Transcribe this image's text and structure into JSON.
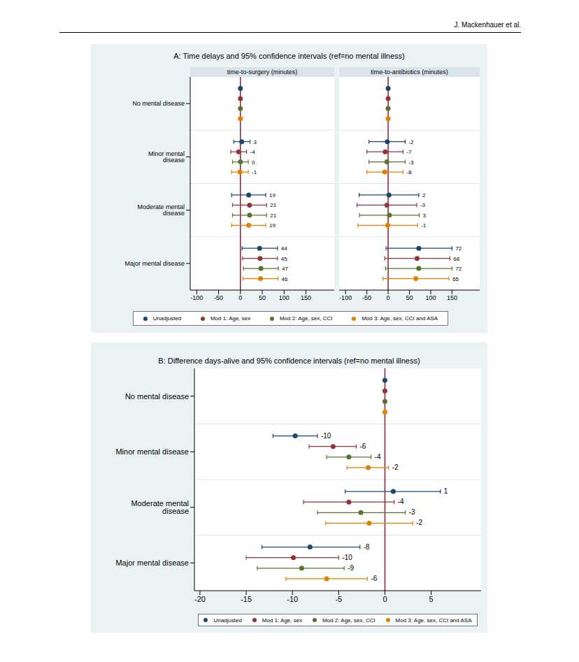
{
  "header": "J. Mackenhauer et al.",
  "chart_data": [
    {
      "type": "scatter",
      "title": "A: Time delays and 95% confidence intervals (ref=no mental illness)",
      "categories": [
        "No mental disease",
        "Minor mental disease",
        "Moderate mental disease",
        "Major mental disease"
      ],
      "grid": true,
      "legend": "bottom",
      "data_labels": true,
      "marker": "circle",
      "reference_value": 0,
      "series": [
        {
          "name": "Unadjusted",
          "color": "#1a476f"
        },
        {
          "name": "Mod 1: Age, sex",
          "color": "#90353b"
        },
        {
          "name": "Mod 2: Age, sex, CCI",
          "color": "#55752f"
        },
        {
          "name": "Mod 3: Age, sex, CCI and ASA",
          "color": "#e37e00"
        }
      ],
      "panels": [
        {
          "title": "time-to-surgery (minutes)",
          "xlim": [
            -115,
            215
          ],
          "xticks": [
            -100,
            -50,
            0,
            50,
            100,
            150
          ],
          "estimates": [
            {
              "values": [
                0,
                3,
                19,
                44
              ],
              "ci_low": [
                null,
                -15,
                -20,
                4
              ],
              "ci_high": [
                null,
                22,
                58,
                85
              ],
              "value_labels": [
                null,
                "3",
                "19",
                "44"
              ]
            },
            {
              "values": [
                0,
                -4,
                21,
                45
              ],
              "ci_low": [
                null,
                -22,
                -18,
                5
              ],
              "ci_high": [
                null,
                14,
                60,
                85
              ],
              "value_labels": [
                null,
                "-4",
                "21",
                "45"
              ]
            },
            {
              "values": [
                0,
                0,
                21,
                47
              ],
              "ci_low": [
                null,
                -18,
                -18,
                7
              ],
              "ci_high": [
                null,
                18,
                60,
                87
              ],
              "value_labels": [
                null,
                "0",
                "21",
                "47"
              ]
            },
            {
              "values": [
                0,
                -1,
                19,
                46
              ],
              "ci_low": [
                null,
                -20,
                -20,
                6
              ],
              "ci_high": [
                null,
                18,
                58,
                86
              ],
              "value_labels": [
                null,
                "-1",
                "19",
                "46"
              ]
            }
          ]
        },
        {
          "title": "time-to-antibiotics (minutes)",
          "xlim": [
            -115,
            215
          ],
          "xticks": [
            -100,
            -50,
            0,
            50,
            100,
            150
          ],
          "estimates": [
            {
              "values": [
                0,
                -2,
                2,
                72
              ],
              "ci_low": [
                null,
                -45,
                -68,
                -5
              ],
              "ci_high": [
                null,
                40,
                72,
                150
              ],
              "value_labels": [
                null,
                "-2",
                "2",
                "72"
              ]
            },
            {
              "values": [
                0,
                -7,
                -3,
                68
              ],
              "ci_low": [
                null,
                -50,
                -73,
                -8
              ],
              "ci_high": [
                null,
                35,
                67,
                145
              ],
              "value_labels": [
                null,
                "-7",
                "-3",
                "68"
              ]
            },
            {
              "values": [
                0,
                -3,
                3,
                72
              ],
              "ci_low": [
                null,
                -45,
                -67,
                -6
              ],
              "ci_high": [
                null,
                40,
                73,
                150
              ],
              "value_labels": [
                null,
                "-3",
                "3",
                "72"
              ]
            },
            {
              "values": [
                0,
                -8,
                -1,
                65
              ],
              "ci_low": [
                null,
                -50,
                -71,
                -12
              ],
              "ci_high": [
                null,
                35,
                69,
                143
              ],
              "value_labels": [
                null,
                "-8",
                "-1",
                "65"
              ]
            }
          ]
        }
      ]
    },
    {
      "type": "scatter",
      "title": "B: Difference days-alive and 95% confidence intervals (ref=no mental illness)",
      "categories": [
        "No mental disease",
        "Minor mental disease",
        "Moderate mental disease",
        "Major mental disease"
      ],
      "grid": true,
      "legend": "bottom",
      "data_labels": true,
      "marker": "circle",
      "reference_value": 0,
      "xlim": [
        -20.6,
        10.4
      ],
      "xticks": [
        -20,
        -15,
        -10,
        -5,
        0,
        5
      ],
      "series": [
        {
          "name": "Unadjusted",
          "color": "#1a476f",
          "values": [
            0,
            -9.7,
            0.9,
            -8.1
          ],
          "ci_low": [
            null,
            -12.1,
            -4.3,
            -13.3
          ],
          "ci_high": [
            null,
            -7.3,
            6,
            -2.7
          ],
          "value_labels": [
            null,
            "-10",
            "1",
            "-8"
          ]
        },
        {
          "name": "Mod 1: Age, sex",
          "color": "#90353b",
          "values": [
            0,
            -5.6,
            -3.9,
            -9.9
          ],
          "ci_low": [
            null,
            -8.2,
            -8.8,
            -15
          ],
          "ci_high": [
            null,
            -3.1,
            1,
            -5
          ],
          "value_labels": [
            null,
            "-6",
            "-4",
            "-10"
          ]
        },
        {
          "name": "Mod 2: Age, sex, CCI",
          "color": "#55752f",
          "values": [
            0,
            -3.9,
            -2.6,
            -9
          ],
          "ci_low": [
            null,
            -6.3,
            -7.3,
            -13.8
          ],
          "ci_high": [
            null,
            -1.5,
            2.2,
            -4.4
          ],
          "value_labels": [
            null,
            "-4",
            "-3",
            "-9"
          ]
        },
        {
          "name": "Mod 3: Age, sex, CCI and ASA",
          "color": "#e37e00",
          "values": [
            0,
            -1.8,
            -1.7,
            -6.3
          ],
          "ci_low": [
            null,
            -4.1,
            -6.4,
            -10.7
          ],
          "ci_high": [
            null,
            0.4,
            3,
            -1.9
          ],
          "value_labels": [
            null,
            "-2",
            "-2",
            "-6"
          ]
        }
      ]
    }
  ]
}
